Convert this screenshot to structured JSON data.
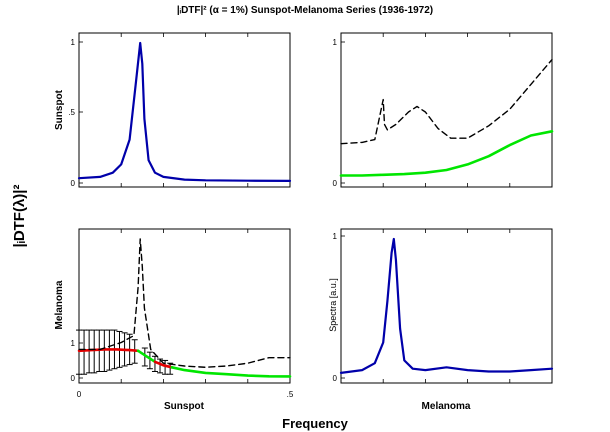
{
  "figure": {
    "title": "|ᵢDTF|² (α = 1%) Sunspot-Melanoma Series (1936-1972)",
    "y_super_label": "|ᵢDTF(λ)|²",
    "x_super_label": "Frequency",
    "row_labels": [
      "Sunspot",
      "Melanoma"
    ],
    "col_labels": [
      "Sunspot",
      "Melanoma"
    ],
    "x_ticks": [
      "0",
      ".5"
    ],
    "colors": {
      "spectrum": "#0000aa",
      "dtf_significant": "#00e600",
      "dtf_nonsignificant": "#e60000",
      "pdc": "#000000",
      "error_bars": "#000000"
    }
  },
  "chart_data": [
    {
      "type": "line",
      "panel": "Sunspot-Sunspot",
      "ylabel": "Sunspot",
      "y_ticks": [
        "0",
        ".5",
        "1"
      ],
      "xlim": [
        0,
        0.5
      ],
      "ylim": [
        0,
        1
      ],
      "series": [
        {
          "style": "spectrum",
          "x": [
            0,
            0.05,
            0.08,
            0.1,
            0.12,
            0.135,
            0.145,
            0.15,
            0.155,
            0.165,
            0.18,
            0.2,
            0.25,
            0.3,
            0.4,
            0.5
          ],
          "y": [
            0.02,
            0.03,
            0.06,
            0.12,
            0.3,
            0.72,
            1.0,
            0.85,
            0.45,
            0.15,
            0.06,
            0.03,
            0.01,
            0.005,
            0.002,
            0.001
          ]
        }
      ]
    },
    {
      "type": "line",
      "panel": "Melanoma→Sunspot",
      "y_ticks": [
        "0",
        "1"
      ],
      "xlim": [
        0,
        0.5
      ],
      "ylim": [
        0,
        1
      ],
      "series": [
        {
          "style": "pdc",
          "x": [
            0,
            0.05,
            0.08,
            0.1,
            0.103,
            0.11,
            0.13,
            0.16,
            0.18,
            0.2,
            0.23,
            0.26,
            0.3,
            0.35,
            0.4,
            0.45,
            0.5
          ],
          "y": [
            0.27,
            0.28,
            0.3,
            0.59,
            0.41,
            0.37,
            0.41,
            0.5,
            0.54,
            0.5,
            0.38,
            0.31,
            0.31,
            0.4,
            0.52,
            0.7,
            0.88
          ]
        },
        {
          "style": "dtf_significant",
          "x": [
            0,
            0.05,
            0.1,
            0.15,
            0.2,
            0.25,
            0.3,
            0.35,
            0.4,
            0.45,
            0.5
          ],
          "y": [
            0.04,
            0.04,
            0.045,
            0.05,
            0.06,
            0.08,
            0.12,
            0.18,
            0.26,
            0.33,
            0.36
          ]
        }
      ]
    },
    {
      "type": "line",
      "panel": "Sunspot→Melanoma",
      "ylabel": "Melanoma",
      "y_ticks": [
        "0",
        "1"
      ],
      "xlim": [
        0,
        0.5
      ],
      "ylim": [
        0,
        1
      ],
      "series": [
        {
          "style": "dtf_nonsignificant",
          "x": [
            0,
            0.03,
            0.06,
            0.09,
            0.12,
            0.14
          ],
          "y": [
            0.19,
            0.195,
            0.2,
            0.2,
            0.195,
            0.19
          ]
        },
        {
          "style": "dtf_significant",
          "x": [
            0.14,
            0.16,
            0.18
          ],
          "y": [
            0.19,
            0.15,
            0.11
          ]
        },
        {
          "style": "dtf_nonsignificant",
          "x": [
            0.18,
            0.2,
            0.22
          ],
          "y": [
            0.11,
            0.085,
            0.07
          ]
        },
        {
          "style": "dtf_significant",
          "x": [
            0.22,
            0.25,
            0.3,
            0.35,
            0.4,
            0.45,
            0.5
          ],
          "y": [
            0.07,
            0.05,
            0.03,
            0.02,
            0.01,
            0.005,
            0.004
          ]
        },
        {
          "style": "pdc",
          "x": [
            0,
            0.05,
            0.1,
            0.13,
            0.14,
            0.145,
            0.15,
            0.155,
            0.17,
            0.2,
            0.25,
            0.3,
            0.35,
            0.4,
            0.45,
            0.5
          ],
          "y": [
            0.2,
            0.2,
            0.25,
            0.3,
            0.65,
            1.0,
            0.8,
            0.5,
            0.2,
            0.1,
            0.08,
            0.07,
            0.08,
            0.1,
            0.14,
            0.14
          ]
        }
      ],
      "error_bars": {
        "x": [
          0,
          0.012,
          0.024,
          0.036,
          0.048,
          0.06,
          0.072,
          0.084,
          0.096,
          0.108,
          0.12,
          0.132,
          0.156,
          0.168,
          0.18,
          0.192,
          0.204,
          0.216
        ],
        "lower": [
          0.02,
          0.02,
          0.03,
          0.03,
          0.04,
          0.04,
          0.05,
          0.06,
          0.07,
          0.08,
          0.09,
          0.1,
          0.08,
          0.06,
          0.04,
          0.03,
          0.02,
          0.02
        ],
        "upper": [
          0.34,
          0.34,
          0.34,
          0.34,
          0.34,
          0.34,
          0.34,
          0.34,
          0.33,
          0.32,
          0.31,
          0.27,
          0.21,
          0.18,
          0.15,
          0.13,
          0.12,
          0.1
        ]
      }
    },
    {
      "type": "line",
      "panel": "Melanoma-Melanoma",
      "ylabel": "Spectra [a.u.]",
      "y_ticks": [
        "0",
        "1"
      ],
      "xlim": [
        0,
        0.5
      ],
      "ylim": [
        0,
        1
      ],
      "series": [
        {
          "style": "spectrum",
          "x": [
            0,
            0.05,
            0.08,
            0.1,
            0.11,
            0.12,
            0.125,
            0.13,
            0.14,
            0.15,
            0.17,
            0.2,
            0.25,
            0.3,
            0.35,
            0.4,
            0.45,
            0.5
          ],
          "y": [
            0.03,
            0.05,
            0.1,
            0.25,
            0.55,
            0.9,
            1.0,
            0.85,
            0.35,
            0.12,
            0.06,
            0.05,
            0.07,
            0.05,
            0.04,
            0.04,
            0.05,
            0.06
          ]
        }
      ]
    }
  ]
}
